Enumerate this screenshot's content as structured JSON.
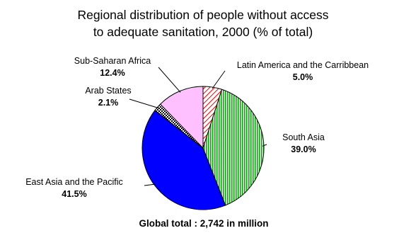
{
  "chart_data": {
    "type": "pie",
    "title_lines": [
      "Regional distribution of people without access",
      "to adequate sanitation, 2000 (% of total)"
    ],
    "footer": "Global total : 2,742 in million",
    "slices": [
      {
        "name": "Latin America and the Carribbean",
        "label": "5.0%",
        "value": 5.0,
        "fill": "pattern-hatch",
        "color": "#ff0000"
      },
      {
        "name": "South Asia",
        "label": "39.0%",
        "value": 39.0,
        "fill": "pattern-vstripe",
        "color": "#00b000"
      },
      {
        "name": "East Asia and the Pacific",
        "label": "41.5%",
        "value": 41.5,
        "fill": "solid",
        "color": "#0000ff"
      },
      {
        "name": "Arab States",
        "label": "2.1%",
        "value": 2.1,
        "fill": "pattern-check",
        "color": "#000000"
      },
      {
        "name": "Sub-Saharan Africa",
        "label": "12.4%",
        "value": 12.4,
        "fill": "solid",
        "color": "#ffc0ff"
      }
    ],
    "start": "12 o'clock",
    "direction": "clockwise",
    "legend": "none",
    "labels": "outside with leader lines"
  }
}
